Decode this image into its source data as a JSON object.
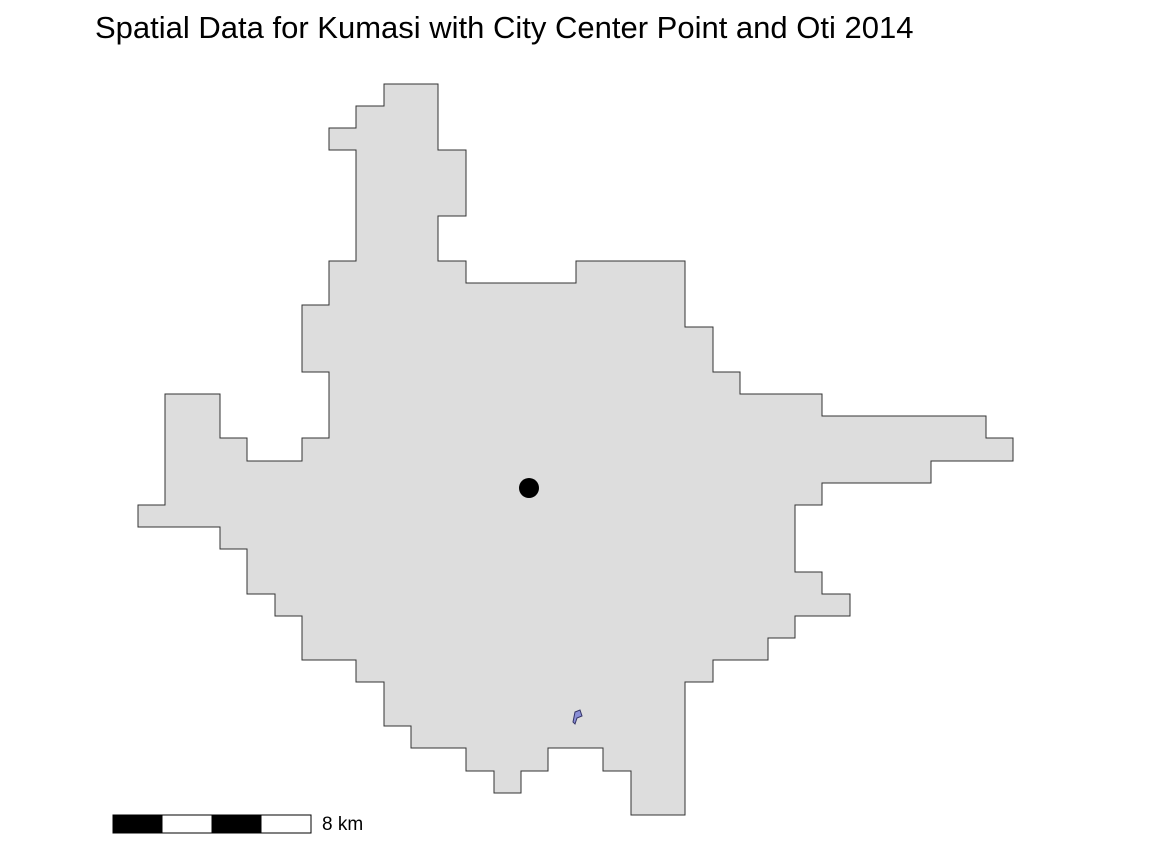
{
  "map": {
    "title": "Spatial Data for Kumasi with City Center Point and Oti 2014",
    "scale_bar": {
      "label": "8 km",
      "segment_count": 4
    },
    "layers": [
      {
        "name": "kumasi-boundary",
        "kind": "polygon",
        "fill_color": "#dddddd",
        "stroke_color": "#333333"
      },
      {
        "name": "city-center-point",
        "kind": "point",
        "color": "#000000"
      },
      {
        "name": "oti-2014",
        "kind": "polygon",
        "fill_color": "#8b8fd6",
        "stroke_color": "#333366"
      }
    ],
    "scale_colors": {
      "dark": "#000000",
      "light": "#ffffff"
    }
  }
}
